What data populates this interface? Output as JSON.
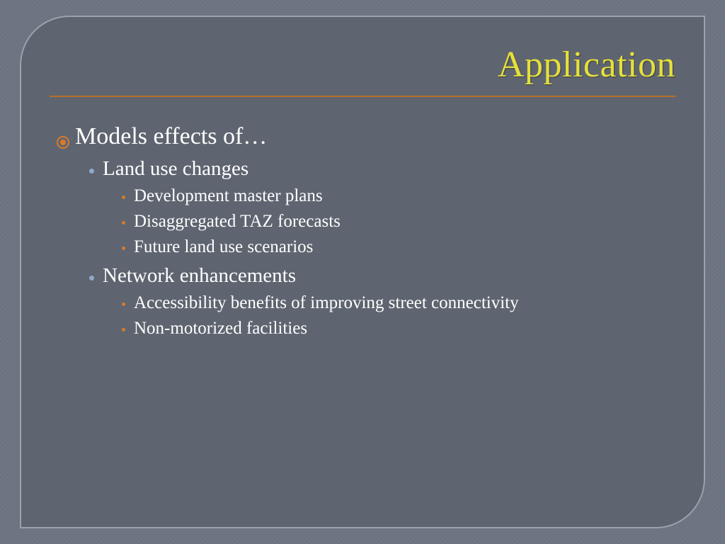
{
  "slide": {
    "title": "Application",
    "title_color": "#e6e03a",
    "rule_color": "#b87028",
    "background_color": "#5e6570",
    "frame_border_color": "#9aa2ad",
    "outer_background": "#6b7280",
    "text_color": "#ffffff",
    "bullets": {
      "level1": {
        "color": "#d97a2a",
        "style": "target",
        "fontsize_pt": 26
      },
      "level2": {
        "color": "#8fa9c9",
        "style": "dot",
        "fontsize_pt": 22
      },
      "level3": {
        "color": "#d97a2a",
        "style": "small-dot",
        "fontsize_pt": 19
      }
    },
    "content": {
      "heading": "Models effects of…",
      "groups": [
        {
          "label": "Land use changes",
          "items": [
            "Development master plans",
            "Disaggregated TAZ forecasts",
            "Future land use scenarios"
          ]
        },
        {
          "label": "Network enhancements",
          "items": [
            "Accessibility benefits of improving street connectivity",
            "Non-motorized facilities"
          ]
        }
      ]
    }
  }
}
